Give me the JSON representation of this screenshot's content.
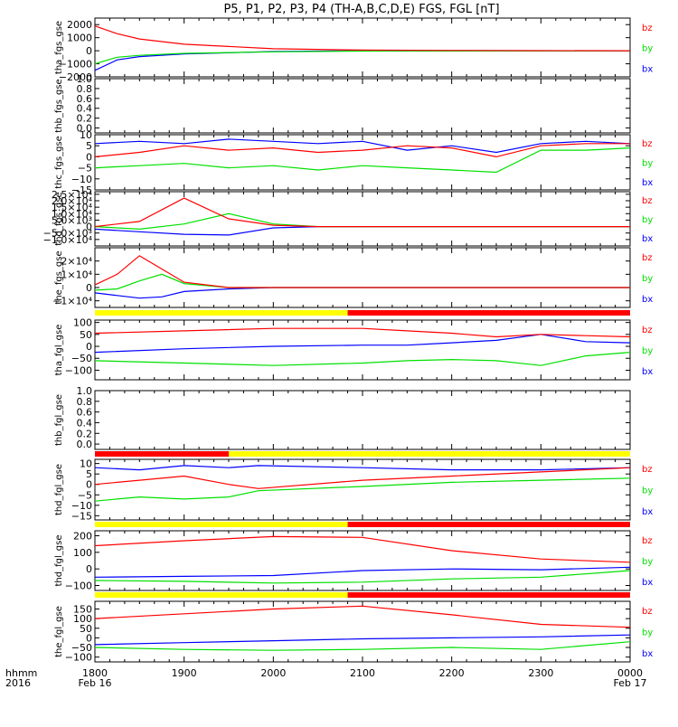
{
  "title": "P5, P1, P2, P3, P4 (TH-A,B,C,D,E) FGS, FGL [nT]",
  "x_axis": {
    "row1_label": "hhmm",
    "row2_label": "2016",
    "ticks": [
      "1800",
      "1900",
      "2000",
      "2100",
      "2200",
      "2300",
      "0000"
    ],
    "date_start": "Feb 16",
    "date_end": "Feb 17"
  },
  "colors": {
    "bz": "#ff0000",
    "by": "#00e000",
    "bx": "#0000ff",
    "flag_yellow": "#ffff00",
    "flag_red": "#ff0000"
  },
  "chart_data": [
    {
      "type": "line",
      "ylabel": "tha_fgs_gse",
      "ylim": [
        -2000,
        2500
      ],
      "yticks": [
        2000,
        1000,
        0,
        -1000,
        -2000
      ],
      "ytick_labels": [
        "2000",
        "1000",
        "0",
        "−1000",
        "−2000"
      ],
      "x": [
        "1800",
        "1815",
        "1830",
        "1900",
        "2000",
        "2100",
        "2200",
        "2300",
        "0000"
      ],
      "series": [
        {
          "name": "bz",
          "values": [
            1900,
            1300,
            900,
            500,
            150,
            50,
            20,
            10,
            0
          ]
        },
        {
          "name": "by",
          "values": [
            -1000,
            -500,
            -350,
            -200,
            -80,
            -30,
            -20,
            -10,
            0
          ]
        },
        {
          "name": "bx",
          "values": [
            -1500,
            -700,
            -450,
            -250,
            -60,
            0,
            10,
            0,
            0
          ]
        }
      ]
    },
    {
      "type": "line",
      "ylabel": "thb_fgs_gse",
      "ylim": [
        -0.1,
        1.0
      ],
      "yticks": [
        1.0,
        0.8,
        0.6,
        0.4,
        0.2,
        0.0
      ],
      "ytick_labels": [
        "1.0",
        "0.8",
        "0.6",
        "0.4",
        "0.2",
        "0.0"
      ],
      "series": []
    },
    {
      "type": "line",
      "ylabel": "thc_fgs_gse",
      "ylim": [
        -15,
        10
      ],
      "yticks": [
        10,
        5,
        0,
        -5,
        -10,
        -15
      ],
      "ytick_labels": [
        "10",
        "5",
        "0",
        "−5",
        "−10",
        "−15"
      ],
      "x": [
        "1800",
        "1830",
        "1900",
        "1930",
        "2000",
        "2030",
        "2100",
        "2130",
        "2200",
        "2230",
        "2300",
        "2330",
        "0000"
      ],
      "series": [
        {
          "name": "bz",
          "values": [
            0,
            2,
            5,
            3,
            4,
            2,
            3,
            5,
            4,
            0,
            5,
            6,
            6
          ]
        },
        {
          "name": "by",
          "values": [
            -5,
            -4,
            -3,
            -5,
            -4,
            -6,
            -4,
            -5,
            -6,
            -7,
            3,
            3,
            4
          ]
        },
        {
          "name": "bx",
          "values": [
            6,
            7,
            6,
            8,
            7,
            6,
            7,
            3,
            5,
            2,
            6,
            7,
            6
          ]
        }
      ]
    },
    {
      "type": "line",
      "ylabel": "thd_fgs_gse",
      "ylim": [
        -15000,
        27000
      ],
      "yticks": [
        25000,
        20000,
        15000,
        10000,
        5000,
        0,
        -5000,
        -10000
      ],
      "ytick_labels": [
        "2.5×10⁴",
        "2.0×10⁴",
        "1.5×10⁴",
        "1.0×10⁴",
        "5.0×10³",
        "0",
        "−5.0×10³",
        "−1.0×10⁴"
      ],
      "x": [
        "1800",
        "1830",
        "1900",
        "1930",
        "2000",
        "2030",
        "2100",
        "2200",
        "2300",
        "0000"
      ],
      "series": [
        {
          "name": "bz",
          "values": [
            0,
            4000,
            22000,
            6000,
            1000,
            0,
            0,
            0,
            0,
            0
          ]
        },
        {
          "name": "by",
          "values": [
            0,
            -2000,
            2000,
            10000,
            2000,
            0,
            0,
            0,
            0,
            0
          ]
        },
        {
          "name": "bx",
          "values": [
            -2000,
            -4000,
            -6000,
            -6500,
            -1000,
            0,
            0,
            0,
            0,
            0
          ]
        }
      ]
    },
    {
      "type": "line",
      "ylabel": "the_fgs_gse",
      "ylim": [
        -15000,
        30000
      ],
      "yticks": [
        20000,
        10000,
        0,
        -10000
      ],
      "ytick_labels": [
        "2×10⁴",
        "1×10⁴",
        "0",
        "−1×10⁴"
      ],
      "x": [
        "1800",
        "1815",
        "1830",
        "1845",
        "1900",
        "1930",
        "2000",
        "2100",
        "2200",
        "2300",
        "0000"
      ],
      "series": [
        {
          "name": "bz",
          "values": [
            2000,
            10000,
            24000,
            14000,
            4000,
            0,
            0,
            0,
            0,
            0,
            0
          ]
        },
        {
          "name": "by",
          "values": [
            -2000,
            -1000,
            5000,
            10000,
            3000,
            0,
            0,
            0,
            0,
            0,
            0
          ]
        },
        {
          "name": "bx",
          "values": [
            -4000,
            -6000,
            -8000,
            -7000,
            -3000,
            -1000,
            0,
            0,
            0,
            0,
            0
          ]
        }
      ]
    },
    {
      "type": "line",
      "ylabel": "tha_fgl_gse",
      "ylim": [
        -140,
        110
      ],
      "yticks": [
        100,
        50,
        0,
        -50,
        -100
      ],
      "ytick_labels": [
        "100",
        "50",
        "0",
        "−50",
        "−100"
      ],
      "x": [
        "1800",
        "1900",
        "2000",
        "2100",
        "2130",
        "2200",
        "2230",
        "2300",
        "2330",
        "0000"
      ],
      "series": [
        {
          "name": "bz",
          "values": [
            55,
            65,
            75,
            75,
            65,
            55,
            40,
            50,
            45,
            40
          ]
        },
        {
          "name": "by",
          "values": [
            -60,
            -70,
            -80,
            -70,
            -60,
            -55,
            -60,
            -80,
            -40,
            -25
          ]
        },
        {
          "name": "bx",
          "values": [
            -25,
            -10,
            0,
            5,
            5,
            15,
            25,
            50,
            20,
            15
          ]
        }
      ],
      "flag_bar": {
        "yellow": [
          [
            "1800",
            "2050"
          ]
        ],
        "red": [
          [
            "2050",
            "0000"
          ]
        ]
      }
    },
    {
      "type": "line",
      "ylabel": "thb_fgl_gse",
      "ylim": [
        -0.1,
        1.0
      ],
      "yticks": [
        1.0,
        0.8,
        0.6,
        0.4,
        0.2,
        0.0
      ],
      "ytick_labels": [
        "1.0",
        "0.8",
        "0.6",
        "0.4",
        "0.2",
        "0.0"
      ],
      "series": [],
      "flag_bar": {
        "yellow": [
          [
            "1930",
            "0000"
          ]
        ],
        "red": [
          [
            "1800",
            "1930"
          ]
        ]
      }
    },
    {
      "type": "line",
      "ylabel": "thd_fgl_gse",
      "ylim": [
        -17,
        12
      ],
      "yticks": [
        10,
        5,
        0,
        -5,
        -10,
        -15
      ],
      "ytick_labels": [
        "10",
        "5",
        "0",
        "−5",
        "−10",
        "−15"
      ],
      "x": [
        "1800",
        "1830",
        "1900",
        "1930",
        "1950",
        "2100",
        "2200",
        "2300",
        "0000"
      ],
      "series": [
        {
          "name": "bz",
          "values": [
            0,
            2,
            4,
            0,
            -2,
            2,
            4,
            6,
            8
          ]
        },
        {
          "name": "by",
          "values": [
            -8,
            -6,
            -7,
            -6,
            -3,
            -1,
            1,
            2,
            3
          ]
        },
        {
          "name": "bx",
          "values": [
            8,
            7,
            9,
            8,
            9,
            8,
            7,
            7,
            8
          ]
        }
      ],
      "flag_bar": {
        "yellow": [
          [
            "1800",
            "2050"
          ]
        ],
        "red": [
          [
            "2050",
            "0000"
          ]
        ]
      }
    },
    {
      "type": "line",
      "ylabel": "thd_fgl_gse",
      "ylim": [
        -130,
        230
      ],
      "yticks": [
        200,
        100,
        0,
        -100
      ],
      "ytick_labels": [
        "200",
        "100",
        "0",
        "−100"
      ],
      "x": [
        "1800",
        "1900",
        "2000",
        "2100",
        "2200",
        "2300",
        "0000"
      ],
      "series": [
        {
          "name": "bz",
          "values": [
            140,
            170,
            195,
            190,
            110,
            60,
            40
          ]
        },
        {
          "name": "by",
          "values": [
            -70,
            -75,
            -85,
            -80,
            -60,
            -50,
            -10
          ]
        },
        {
          "name": "bx",
          "values": [
            -50,
            -45,
            -40,
            -10,
            0,
            -5,
            10
          ]
        }
      ],
      "flag_bar": {
        "yellow": [
          [
            "1800",
            "2050"
          ]
        ],
        "red": [
          [
            "2050",
            "0000"
          ]
        ]
      }
    },
    {
      "type": "line",
      "ylabel": "the_fgl_gse",
      "ylim": [
        -125,
        190
      ],
      "yticks": [
        150,
        100,
        50,
        0,
        -50,
        -100
      ],
      "ytick_labels": [
        "150",
        "100",
        "50",
        "0",
        "−50",
        "−100"
      ],
      "x": [
        "1800",
        "1900",
        "2000",
        "2100",
        "2200",
        "2300",
        "0000"
      ],
      "series": [
        {
          "name": "bz",
          "values": [
            100,
            125,
            150,
            165,
            120,
            70,
            55
          ]
        },
        {
          "name": "by",
          "values": [
            -50,
            -60,
            -65,
            -60,
            -50,
            -60,
            -20
          ]
        },
        {
          "name": "bx",
          "values": [
            -35,
            -25,
            -15,
            -5,
            0,
            5,
            15
          ]
        }
      ]
    }
  ]
}
